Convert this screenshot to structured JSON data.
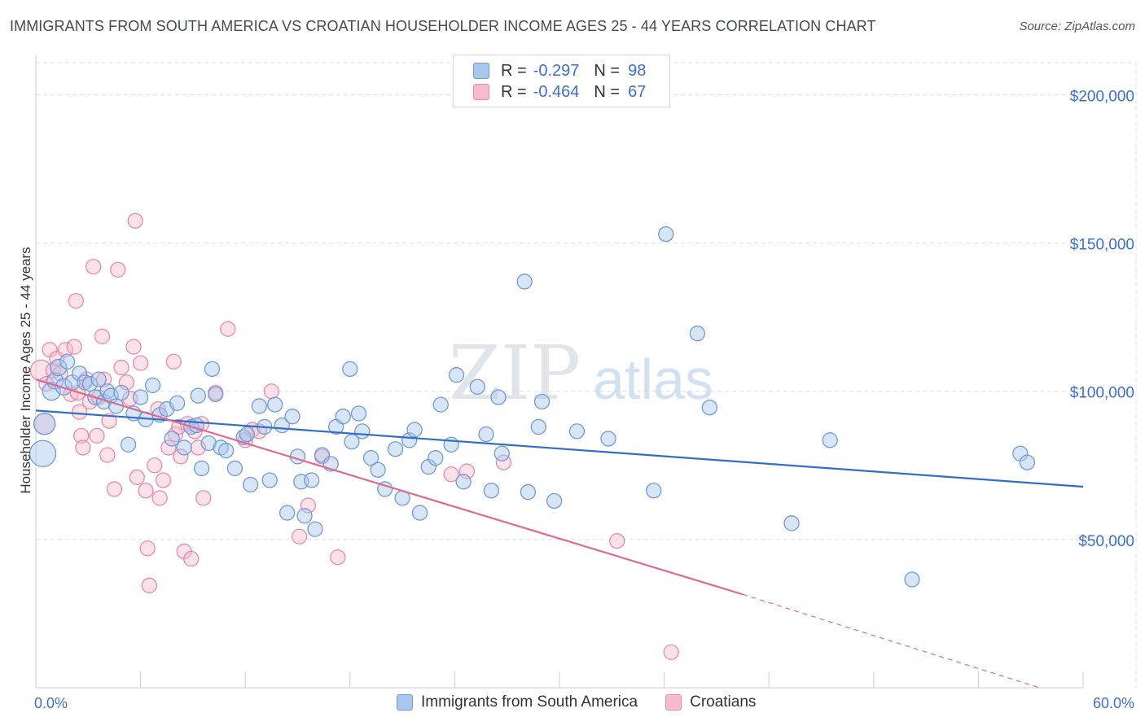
{
  "header": {
    "title": "IMMIGRANTS FROM SOUTH AMERICA VS CROATIAN HOUSEHOLDER INCOME AGES 25 - 44 YEARS CORRELATION CHART",
    "source": "Source: ZipAtlas.com"
  },
  "watermark": {
    "zip": "ZIP",
    "atlas": "atlas"
  },
  "legend": {
    "series1": {
      "r_label": "R =",
      "r_value": "-0.297",
      "n_label": "N =",
      "n_value": "98"
    },
    "series2": {
      "r_label": "R =",
      "r_value": "-0.464",
      "n_label": "N =",
      "n_value": "67"
    }
  },
  "colors": {
    "blue_fill": "#a9c6ee",
    "blue_stroke": "#6f9ad8",
    "blue_line": "#2f6fc9",
    "pink_fill": "#f6bccd",
    "pink_stroke": "#e98aa8",
    "pink_line": "#e0698f",
    "tick_label": "#3c6fd0",
    "grid": "#dddddd"
  },
  "chart_data": {
    "type": "scatter",
    "title": "IMMIGRANTS FROM SOUTH AMERICA VS CROATIAN HOUSEHOLDER INCOME AGES 25 - 44 YEARS CORRELATION CHART",
    "xlabel": "",
    "ylabel": "Householder Income Ages 25 - 44 years",
    "xlim": [
      0,
      60
    ],
    "ylim": [
      0,
      210000
    ],
    "x_tick_labels": {
      "left": "0.0%",
      "right": "60.0%"
    },
    "y_ticks": [
      {
        "value": 200000,
        "label": "$200,000"
      },
      {
        "value": 150000,
        "label": "$150,000"
      },
      {
        "value": 100000,
        "label": "$100,000"
      },
      {
        "value": 50000,
        "label": "$50,000"
      }
    ],
    "series": [
      {
        "name": "Immigrants from South America",
        "color": "blue",
        "trend": {
          "x": [
            0,
            60
          ],
          "y": [
            93500,
            67800
          ]
        },
        "points": [
          [
            0.4,
            79000,
            16
          ],
          [
            0.5,
            89000,
            13
          ],
          [
            0.9,
            100000,
            11
          ],
          [
            1.1,
            103500,
            10
          ],
          [
            1.3,
            108000,
            10
          ],
          [
            1.6,
            101500,
            10
          ],
          [
            1.8,
            110000,
            9
          ],
          [
            2.1,
            103000,
            9
          ],
          [
            2.5,
            106000,
            9
          ],
          [
            2.8,
            103000,
            9
          ],
          [
            3.1,
            102500,
            9
          ],
          [
            3.4,
            98000,
            9
          ],
          [
            3.6,
            104000,
            9
          ],
          [
            3.9,
            96500,
            9
          ],
          [
            4.1,
            100000,
            9
          ],
          [
            4.3,
            98500,
            9
          ],
          [
            4.6,
            95000,
            9
          ],
          [
            4.9,
            99500,
            9
          ],
          [
            5.3,
            82000,
            9
          ],
          [
            5.6,
            92500,
            9
          ],
          [
            6.0,
            98000,
            9
          ],
          [
            6.3,
            90500,
            9
          ],
          [
            6.7,
            102000,
            9
          ],
          [
            7.1,
            92000,
            9
          ],
          [
            7.5,
            94000,
            9
          ],
          [
            7.8,
            84000,
            9
          ],
          [
            8.1,
            96000,
            9
          ],
          [
            8.5,
            81000,
            9
          ],
          [
            8.9,
            88000,
            9
          ],
          [
            9.2,
            88500,
            9
          ],
          [
            9.3,
            98500,
            9
          ],
          [
            9.5,
            74000,
            9
          ],
          [
            9.9,
            82500,
            9
          ],
          [
            10.1,
            107500,
            9
          ],
          [
            10.3,
            99000,
            9
          ],
          [
            10.6,
            81000,
            9
          ],
          [
            10.9,
            80000,
            9
          ],
          [
            11.4,
            74000,
            9
          ],
          [
            11.9,
            84500,
            9
          ],
          [
            12.1,
            85500,
            9
          ],
          [
            12.3,
            68500,
            9
          ],
          [
            12.8,
            95000,
            9
          ],
          [
            13.1,
            88000,
            9
          ],
          [
            13.4,
            70000,
            9
          ],
          [
            13.7,
            95500,
            9
          ],
          [
            14.1,
            88500,
            9
          ],
          [
            14.4,
            59000,
            9
          ],
          [
            14.7,
            91500,
            9
          ],
          [
            15.0,
            78000,
            9
          ],
          [
            15.2,
            69500,
            9
          ],
          [
            15.4,
            58000,
            9
          ],
          [
            15.8,
            70000,
            9
          ],
          [
            16.0,
            53500,
            9
          ],
          [
            16.4,
            78500,
            9
          ],
          [
            16.9,
            75500,
            9
          ],
          [
            17.2,
            88000,
            9
          ],
          [
            17.6,
            91500,
            9
          ],
          [
            18.0,
            107500,
            9
          ],
          [
            18.1,
            83000,
            9
          ],
          [
            18.5,
            92500,
            9
          ],
          [
            18.7,
            86500,
            9
          ],
          [
            19.2,
            77500,
            9
          ],
          [
            19.6,
            73500,
            9
          ],
          [
            20.0,
            67000,
            9
          ],
          [
            20.6,
            80500,
            9
          ],
          [
            21.0,
            64000,
            9
          ],
          [
            21.4,
            83500,
            9
          ],
          [
            21.7,
            87000,
            9
          ],
          [
            22.0,
            59000,
            9
          ],
          [
            22.5,
            74500,
            9
          ],
          [
            22.9,
            77500,
            9
          ],
          [
            23.2,
            95500,
            9
          ],
          [
            23.8,
            82000,
            9
          ],
          [
            24.1,
            105500,
            9
          ],
          [
            24.5,
            69500,
            9
          ],
          [
            25.3,
            101500,
            9
          ],
          [
            25.8,
            85500,
            9
          ],
          [
            26.1,
            66500,
            9
          ],
          [
            26.5,
            98000,
            9
          ],
          [
            26.7,
            79000,
            9
          ],
          [
            28.0,
            137000,
            9
          ],
          [
            28.2,
            66000,
            9
          ],
          [
            28.8,
            88000,
            9
          ],
          [
            29.0,
            96500,
            9
          ],
          [
            29.7,
            63000,
            9
          ],
          [
            31.0,
            86500,
            9
          ],
          [
            32.8,
            84000,
            9
          ],
          [
            35.4,
            66500,
            9
          ],
          [
            36.1,
            153000,
            9
          ],
          [
            37.9,
            119500,
            9
          ],
          [
            38.6,
            94500,
            9
          ],
          [
            43.3,
            55500,
            9
          ],
          [
            45.5,
            83500,
            9
          ],
          [
            50.2,
            36500,
            9
          ],
          [
            56.4,
            79000,
            9
          ],
          [
            56.8,
            76000,
            9
          ]
        ]
      },
      {
        "name": "Croatians",
        "color": "pink",
        "trend": {
          "x": [
            0,
            40.5
          ],
          "y": [
            104000,
            31500
          ],
          "dashed_to": {
            "x": 57.5,
            "y": 0
          }
        },
        "points": [
          [
            0.3,
            107000,
            13
          ],
          [
            0.5,
            89000,
            13
          ],
          [
            0.6,
            102500,
            9
          ],
          [
            0.8,
            114000,
            9
          ],
          [
            1.0,
            107000,
            9
          ],
          [
            1.2,
            111000,
            9
          ],
          [
            1.4,
            106000,
            9
          ],
          [
            1.7,
            114000,
            9
          ],
          [
            2.0,
            99000,
            9
          ],
          [
            2.2,
            115000,
            9
          ],
          [
            2.3,
            130500,
            9
          ],
          [
            2.4,
            99500,
            9
          ],
          [
            2.5,
            93000,
            9
          ],
          [
            2.6,
            85000,
            9
          ],
          [
            2.7,
            81000,
            9
          ],
          [
            2.9,
            104000,
            9
          ],
          [
            3.1,
            96500,
            9
          ],
          [
            3.3,
            142000,
            9
          ],
          [
            3.5,
            85000,
            9
          ],
          [
            3.6,
            98000,
            9
          ],
          [
            3.8,
            118500,
            9
          ],
          [
            3.9,
            104000,
            9
          ],
          [
            4.1,
            78500,
            9
          ],
          [
            4.2,
            90000,
            9
          ],
          [
            4.5,
            67000,
            9
          ],
          [
            4.7,
            141000,
            9
          ],
          [
            4.9,
            108000,
            9
          ],
          [
            5.2,
            103000,
            9
          ],
          [
            5.4,
            97500,
            9
          ],
          [
            5.6,
            115000,
            9
          ],
          [
            5.7,
            157500,
            9
          ],
          [
            5.8,
            71000,
            9
          ],
          [
            6.0,
            109500,
            9
          ],
          [
            6.3,
            66500,
            9
          ],
          [
            6.4,
            47000,
            9
          ],
          [
            6.5,
            34500,
            9
          ],
          [
            6.8,
            75000,
            9
          ],
          [
            7.0,
            94000,
            9
          ],
          [
            7.1,
            64000,
            9
          ],
          [
            7.3,
            70000,
            9
          ],
          [
            7.6,
            81000,
            9
          ],
          [
            7.9,
            110000,
            9
          ],
          [
            8.0,
            85500,
            9
          ],
          [
            8.2,
            88000,
            9
          ],
          [
            8.3,
            78000,
            9
          ],
          [
            8.5,
            46000,
            9
          ],
          [
            8.7,
            89000,
            9
          ],
          [
            8.9,
            43500,
            9
          ],
          [
            9.1,
            86500,
            9
          ],
          [
            9.3,
            81000,
            9
          ],
          [
            9.5,
            89000,
            9
          ],
          [
            9.6,
            64000,
            9
          ],
          [
            10.3,
            99500,
            9
          ],
          [
            11.0,
            121000,
            9
          ],
          [
            12.0,
            83500,
            9
          ],
          [
            12.4,
            87000,
            9
          ],
          [
            12.8,
            86500,
            9
          ],
          [
            13.5,
            100000,
            9
          ],
          [
            15.1,
            51000,
            9
          ],
          [
            15.6,
            61500,
            9
          ],
          [
            16.4,
            78000,
            9
          ],
          [
            17.3,
            44000,
            9
          ],
          [
            23.8,
            72000,
            9
          ],
          [
            24.7,
            73000,
            9
          ],
          [
            26.8,
            76000,
            9
          ],
          [
            33.3,
            49500,
            9
          ],
          [
            36.4,
            12000,
            9
          ]
        ]
      }
    ],
    "legend_position": "top-center"
  }
}
